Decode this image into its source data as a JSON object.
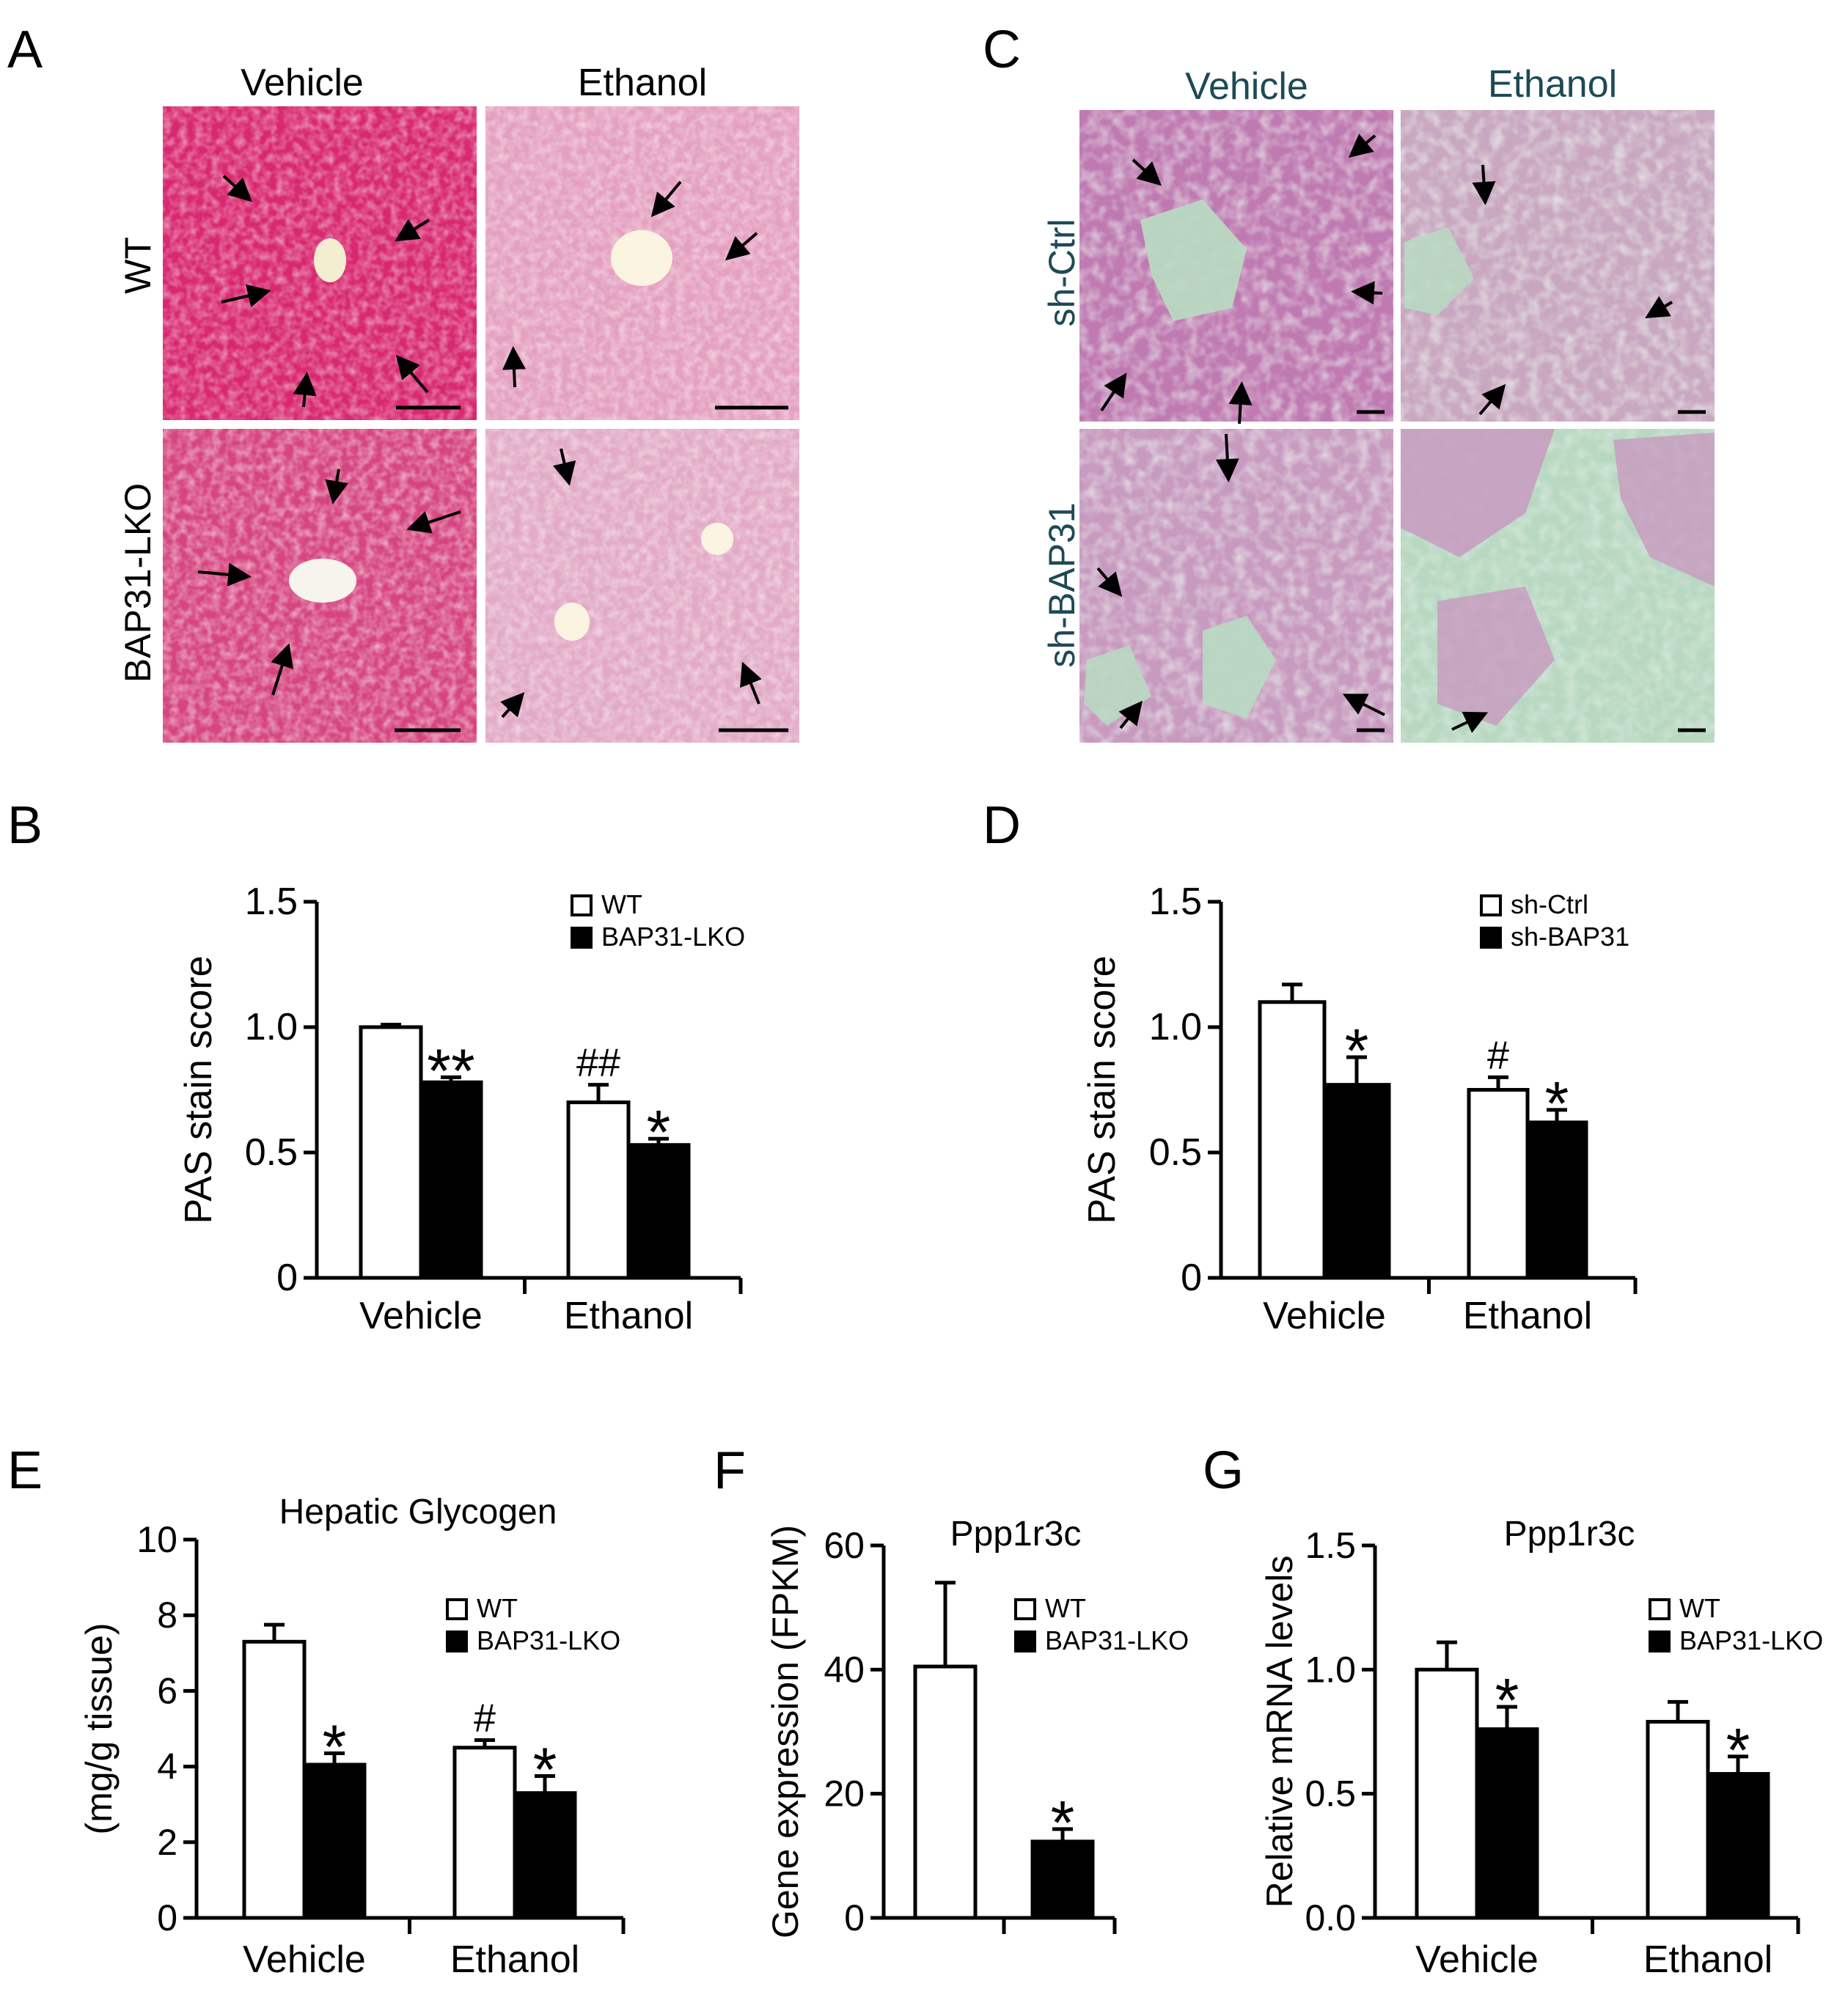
{
  "panels": {
    "A": {
      "letter": "A",
      "columns": [
        "Vehicle",
        "Ethanol"
      ],
      "rows": [
        "WT",
        "BAP31-LKO"
      ],
      "tint_colors": {
        "dense": "#d8286f",
        "light": "#e4a0c0"
      }
    },
    "C": {
      "letter": "C",
      "columns": [
        "Vehicle",
        "Ethanol"
      ],
      "rows": [
        "sh-Ctrl",
        "sh-BAP31"
      ],
      "label_color": "#1d4a55",
      "tint_colors": {
        "dense": "#c07ab2",
        "light": "#b9d8c2"
      }
    }
  },
  "chart_data": [
    {
      "id": "B",
      "letter": "B",
      "type": "bar",
      "title": "",
      "ylabel": "PAS stain score",
      "xlabel": "",
      "categories": [
        "Vehicle",
        "Ethanol"
      ],
      "ylim": [
        0,
        1.5
      ],
      "yticks": [
        "0",
        "0.5",
        "1.0",
        "1.5"
      ],
      "series": [
        {
          "name": "WT",
          "color": "#ffffff",
          "values": [
            1.0,
            0.7
          ],
          "errors": [
            0.01,
            0.07
          ]
        },
        {
          "name": "BAP31-LKO",
          "color": "#000000",
          "values": [
            0.78,
            0.53
          ],
          "errors": [
            0.02,
            0.025
          ]
        }
      ],
      "annotations": [
        {
          "category": 0,
          "series": 1,
          "text": "**"
        },
        {
          "category": 1,
          "series": 0,
          "text": "##"
        },
        {
          "category": 1,
          "series": 1,
          "text": "*"
        }
      ]
    },
    {
      "id": "D",
      "letter": "D",
      "type": "bar",
      "title": "",
      "ylabel": "PAS stain score",
      "xlabel": "",
      "categories": [
        "Vehicle",
        "Ethanol"
      ],
      "ylim": [
        0,
        1.5
      ],
      "yticks": [
        "0",
        "0.5",
        "1.0",
        "1.5"
      ],
      "series": [
        {
          "name": "sh-Ctrl",
          "color": "#ffffff",
          "values": [
            1.1,
            0.75
          ],
          "errors": [
            0.07,
            0.05
          ]
        },
        {
          "name": "sh-BAP31",
          "color": "#000000",
          "values": [
            0.77,
            0.62
          ],
          "errors": [
            0.11,
            0.05
          ]
        }
      ],
      "annotations": [
        {
          "category": 0,
          "series": 1,
          "text": "*"
        },
        {
          "category": 1,
          "series": 0,
          "text": "#"
        },
        {
          "category": 1,
          "series": 1,
          "text": "*"
        }
      ]
    },
    {
      "id": "E",
      "letter": "E",
      "type": "bar",
      "title": "Hepatic Glycogen",
      "ylabel": "(mg/g tissue)",
      "xlabel": "",
      "categories": [
        "Vehicle",
        "Ethanol"
      ],
      "ylim": [
        0,
        10
      ],
      "yticks": [
        "0",
        "2",
        "4",
        "6",
        "8",
        "10"
      ],
      "series": [
        {
          "name": "WT",
          "color": "#ffffff",
          "values": [
            7.3,
            4.5
          ],
          "errors": [
            0.45,
            0.2
          ]
        },
        {
          "name": "BAP31-LKO",
          "color": "#000000",
          "values": [
            4.05,
            3.3
          ],
          "errors": [
            0.3,
            0.45
          ]
        }
      ],
      "annotations": [
        {
          "category": 0,
          "series": 1,
          "text": "*"
        },
        {
          "category": 1,
          "series": 0,
          "text": "#"
        },
        {
          "category": 1,
          "series": 1,
          "text": "*"
        }
      ]
    },
    {
      "id": "F",
      "letter": "F",
      "type": "bar",
      "title": "Ppp1r3c",
      "ylabel": "Gene expression (FPKM)",
      "xlabel": "",
      "categories": [
        ""
      ],
      "ylim": [
        0,
        60
      ],
      "yticks": [
        "0",
        "20",
        "40",
        "60"
      ],
      "series": [
        {
          "name": "WT",
          "color": "#ffffff",
          "values": [
            40.5
          ],
          "errors": [
            13.5
          ]
        },
        {
          "name": "BAP31-LKO",
          "color": "#000000",
          "values": [
            12.3
          ],
          "errors": [
            2.0
          ]
        }
      ],
      "annotations": [
        {
          "category": 0,
          "series": 1,
          "text": "*"
        }
      ]
    },
    {
      "id": "G",
      "letter": "G",
      "type": "bar",
      "title": "Ppp1r3c",
      "ylabel": "Relative mRNA levels",
      "xlabel": "",
      "categories": [
        "Vehicle",
        "Ethanol"
      ],
      "ylim": [
        0,
        1.5
      ],
      "yticks": [
        "0.0",
        "0.5",
        "1.0",
        "1.5"
      ],
      "series": [
        {
          "name": "WT",
          "color": "#ffffff",
          "values": [
            1.0,
            0.79
          ],
          "errors": [
            0.11,
            0.08
          ]
        },
        {
          "name": "BAP31-LKO",
          "color": "#000000",
          "values": [
            0.76,
            0.58
          ],
          "errors": [
            0.09,
            0.07
          ]
        }
      ],
      "annotations": [
        {
          "category": 0,
          "series": 1,
          "text": "*"
        },
        {
          "category": 1,
          "series": 1,
          "text": "*"
        }
      ]
    }
  ]
}
